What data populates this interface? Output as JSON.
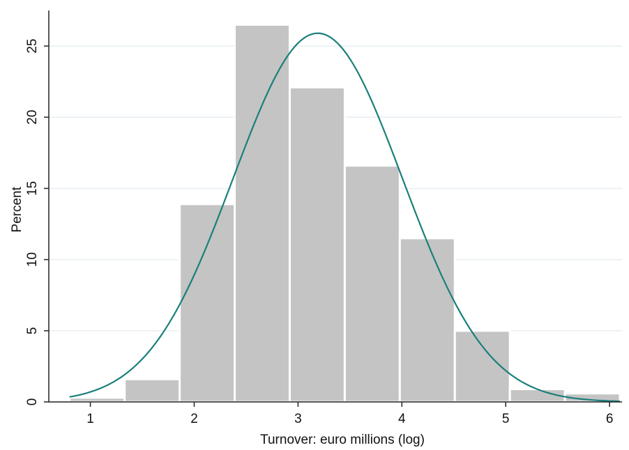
{
  "chart_data": {
    "type": "bar",
    "subtype": "histogram",
    "xlabel": "Turnover: euro millions (log)",
    "ylabel": "Percent",
    "xlim": [
      0.6,
      6.12
    ],
    "ylim": [
      0,
      27.5
    ],
    "xticks": [
      1,
      2,
      3,
      4,
      5,
      6
    ],
    "yticks": [
      0,
      5,
      10,
      15,
      20,
      25
    ],
    "grid": true,
    "bin_width": 0.53,
    "bins": [
      {
        "x0": 0.8,
        "x1": 1.33,
        "value": 0.3
      },
      {
        "x0": 1.33,
        "x1": 1.86,
        "value": 1.6
      },
      {
        "x0": 1.86,
        "x1": 2.39,
        "value": 13.9
      },
      {
        "x0": 2.39,
        "x1": 2.92,
        "value": 26.5
      },
      {
        "x0": 2.92,
        "x1": 3.45,
        "value": 22.1
      },
      {
        "x0": 3.45,
        "x1": 3.98,
        "value": 16.6
      },
      {
        "x0": 3.98,
        "x1": 4.51,
        "value": 11.5
      },
      {
        "x0": 4.51,
        "x1": 5.04,
        "value": 5.0
      },
      {
        "x0": 5.04,
        "x1": 5.57,
        "value": 0.9
      },
      {
        "x0": 5.57,
        "x1": 6.1,
        "value": 0.6
      }
    ],
    "normal_curve": {
      "mean": 3.19,
      "sd": 0.815,
      "peak": 25.9,
      "x_from": 0.8,
      "x_to": 6.1
    },
    "colors": {
      "bar": "#c4c4c4",
      "bar_edge": "#ffffff",
      "curve": "#1a7f7a",
      "grid": "#e6eef2",
      "axis": "#222222"
    }
  }
}
